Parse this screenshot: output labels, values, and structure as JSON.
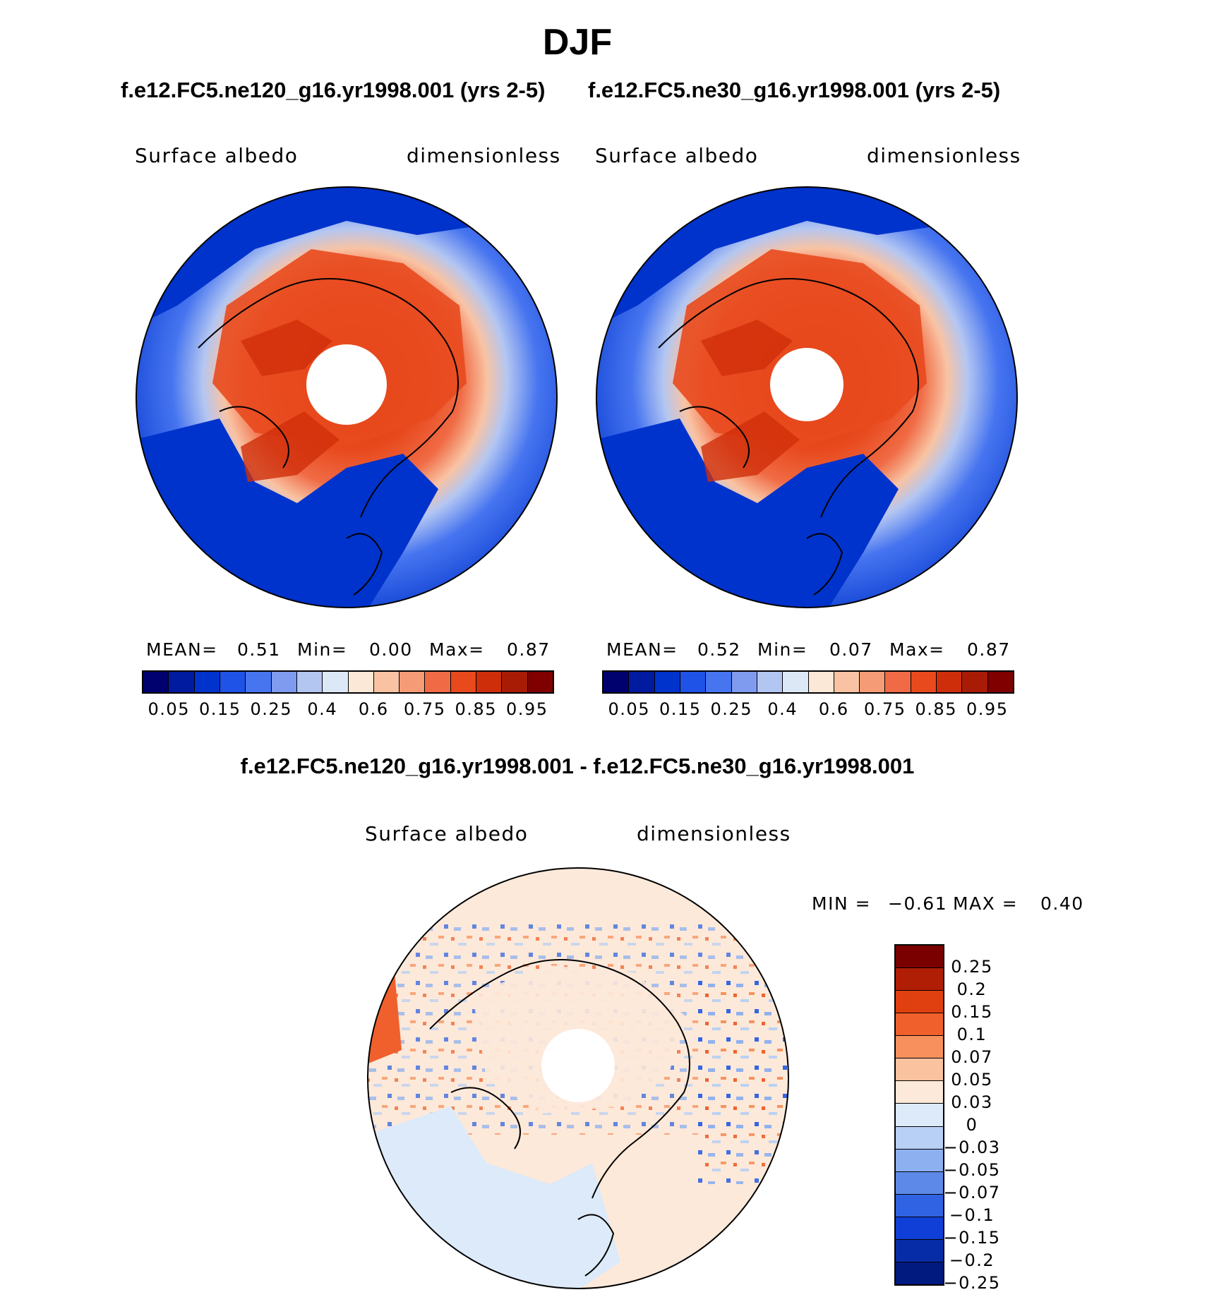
{
  "title": "DJF",
  "panels": [
    {
      "id": "panel-a",
      "case": "f.e12.FC5.ne120_g16.yr1998.001 (yrs 2-5)",
      "variable": "Surface albedo",
      "units": "dimensionless",
      "stats": {
        "mean_label": "MEAN=",
        "mean": "0.51",
        "min_label": "Min=",
        "min": "0.00",
        "max_label": "Max=",
        "max": "0.87"
      }
    },
    {
      "id": "panel-b",
      "case": "f.e12.FC5.ne30_g16.yr1998.001 (yrs 2-5)",
      "variable": "Surface albedo",
      "units": "dimensionless",
      "stats": {
        "mean_label": "MEAN=",
        "mean": "0.52",
        "min_label": "Min=",
        "min": "0.07",
        "max_label": "Max=",
        "max": "0.87"
      }
    }
  ],
  "colorbar": {
    "colors": [
      "#00006e",
      "#001aa0",
      "#0033cc",
      "#1f52e6",
      "#4775f0",
      "#7f9bf0",
      "#b3c6f2",
      "#dde8f7",
      "#fce8d6",
      "#f9c3a3",
      "#f59c76",
      "#f06b45",
      "#e84a1e",
      "#cf2e0a",
      "#a81c06",
      "#800000"
    ],
    "tick_labels": [
      "0.05",
      "0.15",
      "0.25",
      "0.4",
      "0.6",
      "0.75",
      "0.85",
      "0.95"
    ]
  },
  "difference": {
    "title": "f.e12.FC5.ne120_g16.yr1998.001 - f.e12.FC5.ne30_g16.yr1998.001",
    "variable": "Surface albedo",
    "units": "dimensionless",
    "min_label": "MIN =",
    "min": "−0.61",
    "max_label": "MAX =",
    "max": "0.40",
    "colors": [
      "#7a0000",
      "#b01e05",
      "#e0400f",
      "#f0602c",
      "#f7905c",
      "#fbc2a0",
      "#fde9d9",
      "#dceaf9",
      "#b8d0f5",
      "#8db0f0",
      "#5d8ae8",
      "#2f63e3",
      "#0f3fd6",
      "#072ca8",
      "#001a80"
    ],
    "labels": [
      "0.25",
      "0.2",
      "0.15",
      "0.1",
      "0.07",
      "0.05",
      "0.03",
      "0",
      "−0.03",
      "−0.05",
      "−0.07",
      "−0.1",
      "−0.15",
      "−0.2",
      "−0.25"
    ]
  }
}
